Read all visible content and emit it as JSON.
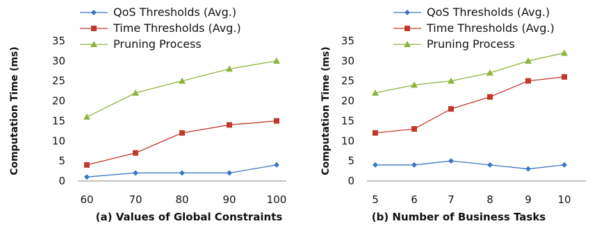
{
  "chart_data": [
    {
      "type": "line",
      "title": "",
      "xlabel": "(a)  Values of Global Constraints",
      "ylabel": "Computation Time (ms)",
      "x": [
        60,
        70,
        80,
        90,
        100
      ],
      "x_ticks": [
        "60",
        "70",
        "80",
        "90",
        "100"
      ],
      "y_ticks": [
        "0",
        "5",
        "10",
        "15",
        "20",
        "25",
        "30",
        "35"
      ],
      "ylim": [
        0,
        35
      ],
      "legend_position": "top",
      "series": [
        {
          "name": "QoS Thresholds (Avg.)",
          "color": "#3a75c4",
          "marker": "diamond",
          "values": [
            1,
            2,
            2,
            2,
            4
          ]
        },
        {
          "name": "Time Thresholds (Avg.)",
          "color": "#c0392b",
          "marker": "square",
          "values": [
            4,
            7,
            12,
            14,
            15
          ]
        },
        {
          "name": "Pruning Process",
          "color": "#8db33a",
          "marker": "triangle",
          "values": [
            16,
            22,
            25,
            28,
            30
          ]
        }
      ]
    },
    {
      "type": "line",
      "title": "",
      "xlabel": "(b)  Number of Business Tasks",
      "ylabel": "Computation Time (ms)",
      "x": [
        5,
        6,
        7,
        8,
        9,
        10
      ],
      "x_ticks": [
        "5",
        "6",
        "7",
        "8",
        "9",
        "10"
      ],
      "y_ticks": [
        "0",
        "5",
        "10",
        "15",
        "20",
        "25",
        "30",
        "35"
      ],
      "ylim": [
        0,
        35
      ],
      "legend_position": "top",
      "series": [
        {
          "name": "QoS Thresholds (Avg.)",
          "color": "#3a75c4",
          "marker": "diamond",
          "values": [
            4,
            4,
            5,
            4,
            3,
            4
          ]
        },
        {
          "name": "Time Thresholds (Avg.)",
          "color": "#c0392b",
          "marker": "square",
          "values": [
            12,
            13,
            18,
            21,
            25,
            26
          ]
        },
        {
          "name": "Pruning Process",
          "color": "#8db33a",
          "marker": "triangle",
          "values": [
            22,
            24,
            25,
            27,
            30,
            32
          ]
        }
      ]
    }
  ]
}
